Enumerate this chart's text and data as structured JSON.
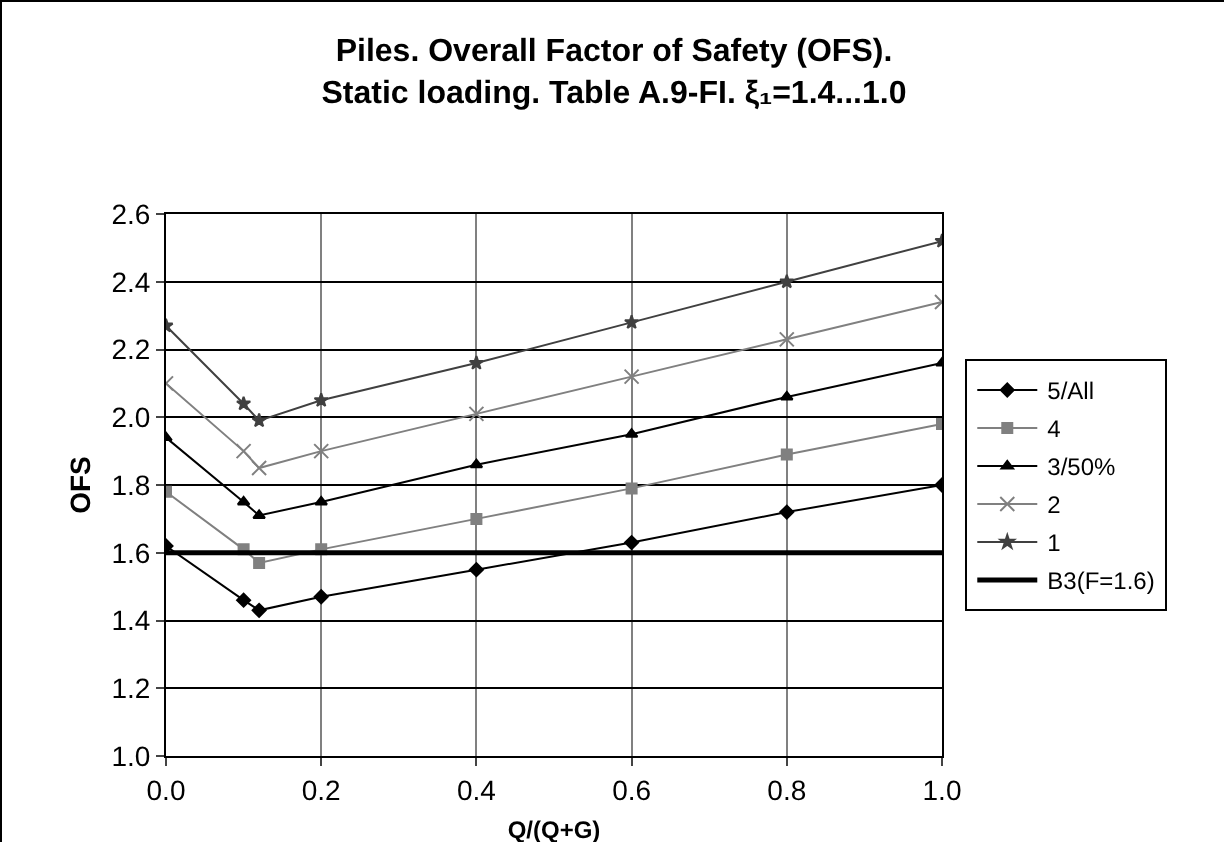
{
  "chart_data": {
    "type": "line",
    "title": "Piles. Overall Factor of Safety (OFS).\nStatic loading. Table A.9-FI. ξ₁=1.4...1.0",
    "xlabel": "Q/(Q+G)",
    "ylabel": "OFS",
    "x": [
      0,
      0.1,
      0.12,
      0.2,
      0.4,
      0.6,
      0.8,
      1.0
    ],
    "series": [
      {
        "name": "5/All",
        "color": "#000000",
        "marker": "diamond",
        "values": [
          1.62,
          1.46,
          1.43,
          1.47,
          1.55,
          1.63,
          1.72,
          1.8
        ]
      },
      {
        "name": "4",
        "color": "#808080",
        "marker": "square",
        "values": [
          1.78,
          1.61,
          1.57,
          1.61,
          1.7,
          1.79,
          1.89,
          1.98
        ]
      },
      {
        "name": "3/50%",
        "color": "#000000",
        "marker": "triangle",
        "values": [
          1.94,
          1.75,
          1.71,
          1.75,
          1.86,
          1.95,
          2.06,
          2.16
        ]
      },
      {
        "name": "2",
        "color": "#808080",
        "marker": "cross",
        "values": [
          2.1,
          1.9,
          1.85,
          1.9,
          2.01,
          2.12,
          2.23,
          2.34
        ]
      },
      {
        "name": "1",
        "color": "#404040",
        "marker": "star",
        "values": [
          2.27,
          2.04,
          1.99,
          2.05,
          2.16,
          2.28,
          2.4,
          2.52
        ]
      }
    ],
    "ref_lines": [
      {
        "axis": "y",
        "value": 1.6,
        "label": "B3(F=1.6)",
        "color": "#000000"
      }
    ],
    "xlim": [
      0,
      1.0
    ],
    "xticks": [
      {
        "value": 0,
        "label": "0.0"
      },
      {
        "value": 0.2,
        "label": "0.2"
      },
      {
        "value": 0.4,
        "label": "0.4"
      },
      {
        "value": 0.6,
        "label": "0.6"
      },
      {
        "value": 0.8,
        "label": "0.8"
      },
      {
        "value": 1.0,
        "label": "1.0"
      }
    ],
    "ylim": [
      1.0,
      2.6
    ],
    "yticks": [
      {
        "value": 1.0,
        "label": "1.0"
      },
      1.2,
      1.4,
      1.6,
      1.8,
      {
        "value": 2.0,
        "label": "2.0"
      },
      2.2,
      2.4,
      2.6
    ],
    "grid": true,
    "legend": "right",
    "line_style": "solid"
  }
}
